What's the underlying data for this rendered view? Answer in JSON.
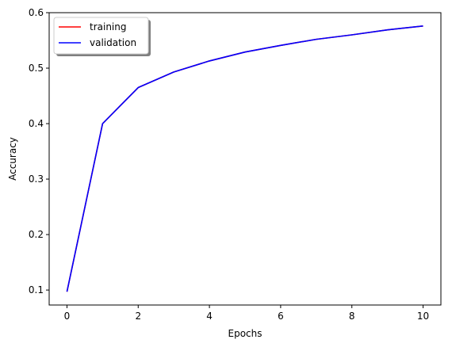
{
  "chart_data": {
    "type": "line",
    "title": "",
    "xlabel": "Epochs",
    "ylabel": "Accuracy",
    "xlim": [
      -0.5,
      10.5
    ],
    "ylim": [
      0.073,
      0.6
    ],
    "xticks": [
      0,
      2,
      4,
      6,
      8,
      10
    ],
    "yticks": [
      0.1,
      0.2,
      0.3,
      0.4,
      0.5,
      0.6
    ],
    "xtick_labels": [
      "0",
      "2",
      "4",
      "6",
      "8",
      "10"
    ],
    "ytick_labels": [
      "0.1",
      "0.2",
      "0.3",
      "0.4",
      "0.5",
      "0.6"
    ],
    "grid": false,
    "legend_position": "top-left",
    "x": [
      0,
      1,
      2,
      3,
      4,
      5,
      6,
      7,
      8,
      9,
      10
    ],
    "series": [
      {
        "name": "training",
        "color": "#ff0000",
        "values": [
          0.097,
          0.4,
          0.465,
          0.493,
          0.513,
          0.529,
          0.541,
          0.552,
          0.56,
          0.569,
          0.576
        ]
      },
      {
        "name": "validation",
        "color": "#0000ff",
        "values": [
          0.097,
          0.4,
          0.465,
          0.493,
          0.513,
          0.529,
          0.541,
          0.552,
          0.56,
          0.569,
          0.576
        ]
      }
    ]
  }
}
